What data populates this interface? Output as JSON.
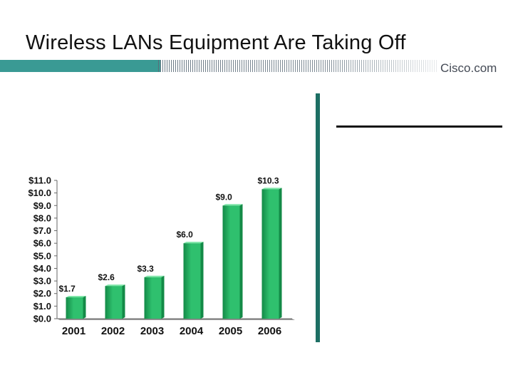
{
  "title": "Wireless LANs Equipment Are Taking Off",
  "logo": {
    "text": "Cisco.com"
  },
  "colors": {
    "bar": "#2fc06e",
    "bar_dark": "#138a47",
    "bar_top": "#7fe6a8",
    "accent_band": "#3a9a94",
    "divider": "#1d6f64"
  },
  "chart_data": {
    "type": "bar",
    "categories": [
      "2001",
      "2002",
      "2003",
      "2004",
      "2005",
      "2006"
    ],
    "values": [
      1.7,
      2.6,
      3.3,
      6.0,
      9.0,
      10.3
    ],
    "data_labels": [
      "$1.7",
      "$2.6",
      "$3.3",
      "$6.0",
      "$9.0",
      "$10.3"
    ],
    "yticks": [
      "$0.0",
      "$1.0",
      "$2.0",
      "$3.0",
      "$4.0",
      "$5.0",
      "$6.0",
      "$7.0",
      "$8.0",
      "$9.0",
      "$10.0",
      "$11.0"
    ],
    "ylim": [
      0,
      11
    ],
    "grid": false,
    "legend": "none"
  }
}
